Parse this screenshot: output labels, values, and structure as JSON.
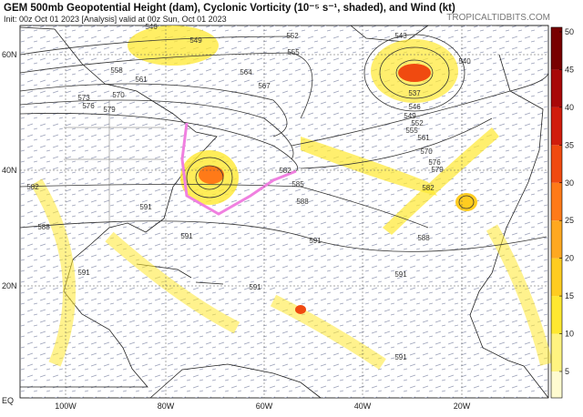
{
  "header": {
    "title": "GEM 500mb Geopotential Height (dam), Cyclonic Vorticity (10⁻⁵ s⁻¹, shaded), and Wind (kt)",
    "subtitle": "Init: 00z Oct 01 2023   [Analysis]   valid at 00z Sun, Oct 01 2023",
    "brand": "TROPICALTIDBITS.COM"
  },
  "lat_labels": [
    "60N",
    "40N",
    "20N",
    "EQ"
  ],
  "lon_labels": [
    "100W",
    "80W",
    "60W",
    "40W",
    "20W"
  ],
  "colorbar": {
    "range": [
      1.5,
      50.6
    ],
    "ticks": [
      5,
      10,
      15,
      20,
      25,
      30,
      35,
      40,
      45,
      50
    ],
    "colors": [
      "#fffbd0",
      "#fff380",
      "#ffe830",
      "#ffcc20",
      "#ffa820",
      "#ff7a18",
      "#f04a10",
      "#d01c0c",
      "#a80808",
      "#780000"
    ]
  },
  "contour_labels": [
    "552",
    "555",
    "546",
    "549",
    "558",
    "561",
    "564",
    "567",
    "570",
    "573",
    "576",
    "579",
    "582",
    "585",
    "588",
    "591",
    "591",
    "591",
    "591",
    "591",
    "543",
    "540",
    "537",
    "546",
    "549",
    "552",
    "555",
    "561",
    "570",
    "576",
    "579",
    "582",
    "588",
    "582",
    "588",
    "591",
    "591"
  ]
}
